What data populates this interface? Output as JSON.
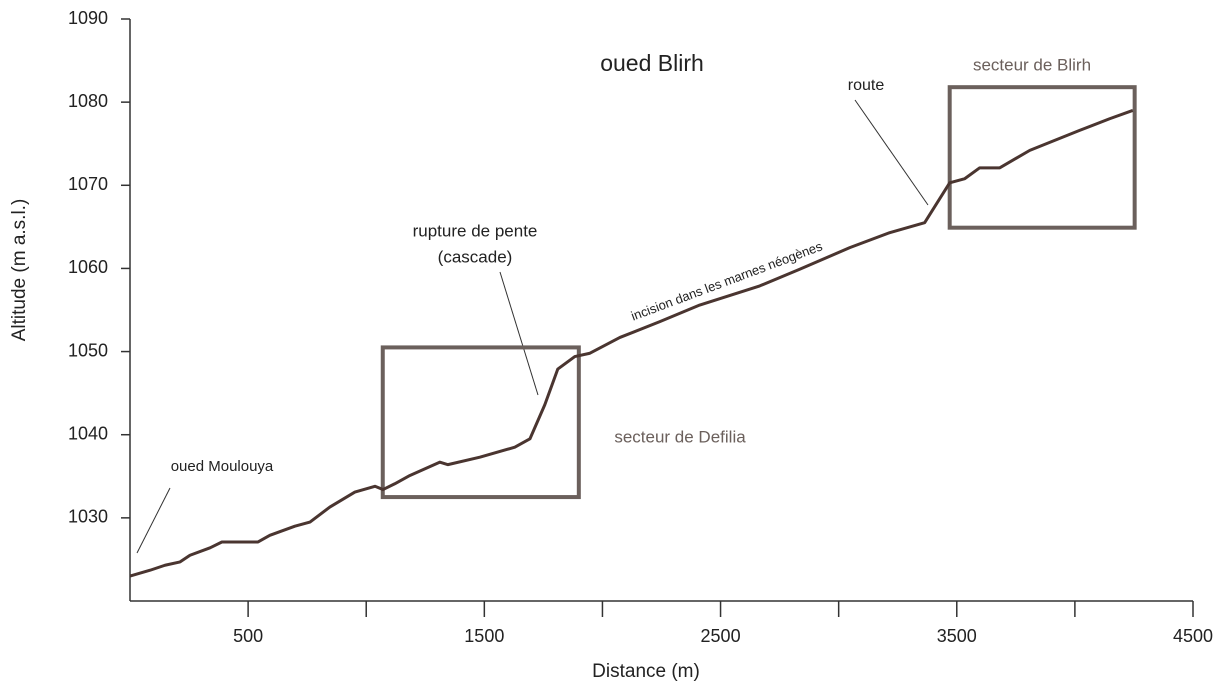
{
  "chart_data": {
    "type": "line",
    "title": "oued Blirh",
    "x_label": "Distance (m)",
    "y_label": "Altitude (m a.s.l.)",
    "xlim": [
      0,
      4500
    ],
    "ylim": [
      1020,
      1090
    ],
    "xticks": [
      500,
      1500,
      2500,
      3500,
      4500
    ],
    "minor_xticks": [
      1000,
      2000,
      3000,
      4000
    ],
    "yticks": [
      1030,
      1040,
      1050,
      1060,
      1070,
      1080,
      1090
    ],
    "grid": false,
    "series": [
      {
        "color": "#4a3530",
        "x": [
          0,
          85,
          148,
          212,
          254,
          339,
          389,
          542,
          592,
          698,
          762,
          846,
          952,
          1037,
          1071,
          1121,
          1185,
          1312,
          1346,
          1481,
          1629,
          1693,
          1756,
          1811,
          1883,
          1947,
          2074,
          2243,
          2412,
          2666,
          2835,
          3047,
          3216,
          3364,
          3470,
          3534,
          3597,
          3682,
          3809,
          4020,
          4147,
          4245
        ],
        "values": [
          1023,
          1023.7,
          1024.3,
          1024.7,
          1025.5,
          1026.4,
          1027.1,
          1027.1,
          1027.9,
          1029,
          1029.5,
          1031.3,
          1033.1,
          1033.8,
          1033.4,
          1034.1,
          1035.1,
          1036.7,
          1036.4,
          1037.3,
          1038.5,
          1039.5,
          1043.6,
          1047.9,
          1049.4,
          1049.8,
          1051.7,
          1053.6,
          1055.6,
          1057.9,
          1059.9,
          1062.5,
          1064.3,
          1065.5,
          1070.3,
          1070.8,
          1072.1,
          1072.1,
          1074.2,
          1076.6,
          1078,
          1079
        ]
      }
    ],
    "boxes": [
      {
        "label": "secteur de Defilia",
        "x": [
          1070,
          1900
        ],
        "y": [
          1032.5,
          1050.5
        ],
        "color": "#6b605c"
      },
      {
        "label": "secteur de Blirh",
        "x": [
          3470,
          4253
        ],
        "y": [
          1064.9,
          1081.8
        ],
        "color": "#6b605c"
      }
    ],
    "annotations": [
      {
        "text": "route"
      },
      {
        "text": [
          "rupture de pente",
          "(cascade)"
        ]
      },
      {
        "text": "incision dans les marnes néogènes"
      },
      {
        "text": "oued Moulouya"
      }
    ]
  }
}
